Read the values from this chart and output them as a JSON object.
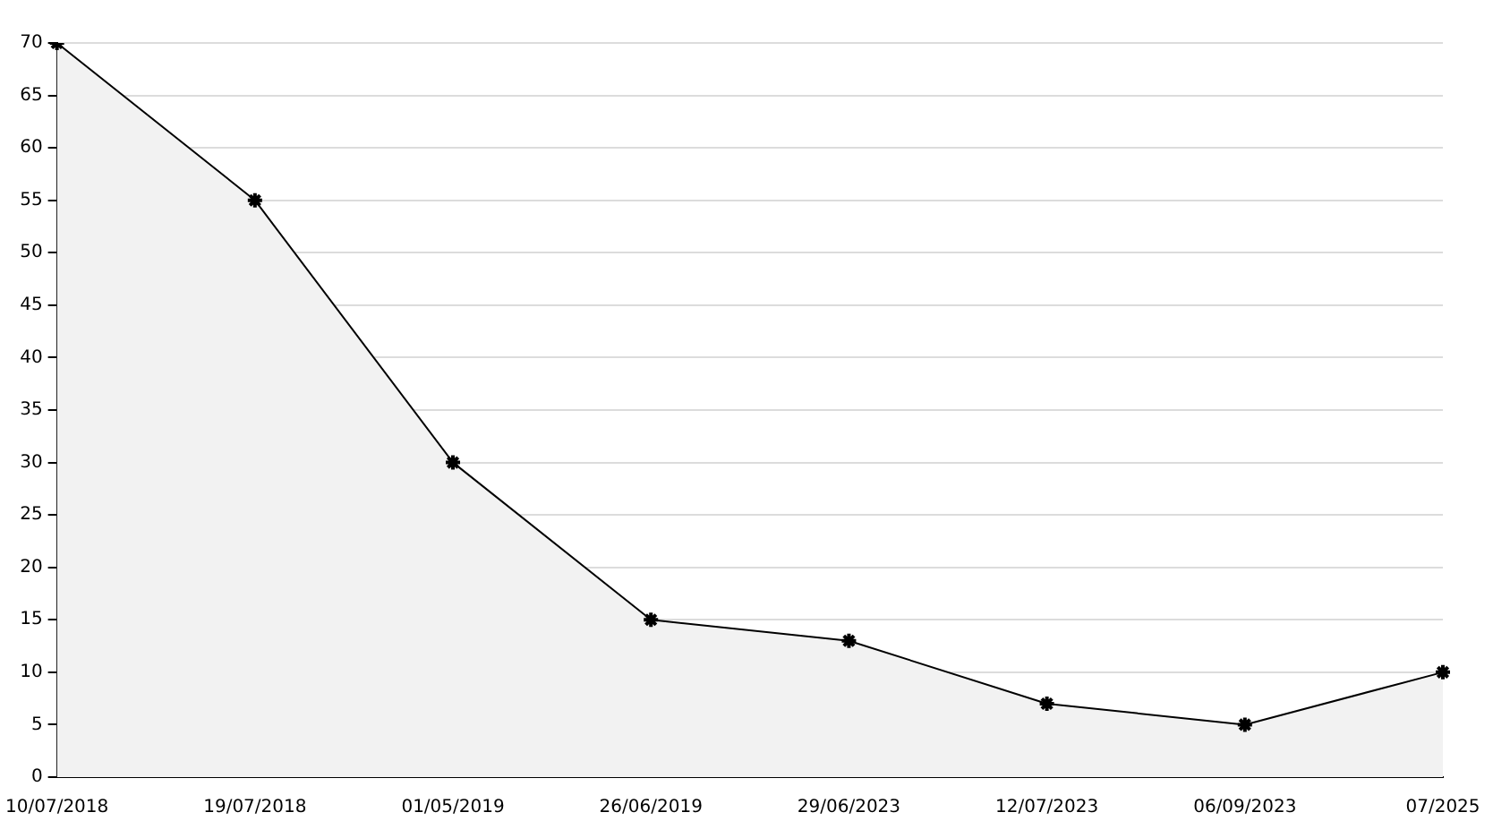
{
  "chart_data": {
    "type": "area",
    "categories": [
      "10/07/2018",
      "19/07/2018",
      "01/05/2019",
      "26/06/2019",
      "29/06/2023",
      "12/07/2023",
      "06/09/2023",
      "07/2025"
    ],
    "series": [
      {
        "color": "#000000",
        "values": [
          70,
          55,
          30,
          15,
          13,
          7,
          5,
          10
        ]
      }
    ],
    "ylim": [
      0,
      70
    ],
    "yticks": [
      0,
      5,
      10,
      15,
      20,
      25,
      30,
      35,
      40,
      45,
      50,
      55,
      60,
      65,
      70
    ],
    "grid": "y",
    "legend": false,
    "marker": "cross",
    "line_style": "solid"
  }
}
